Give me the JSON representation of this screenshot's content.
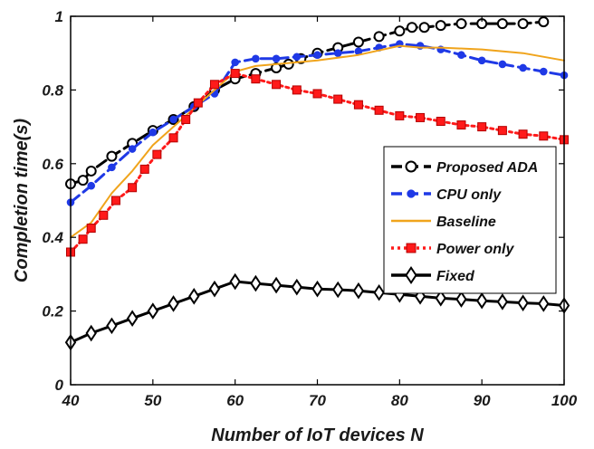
{
  "chart_data": {
    "type": "line",
    "xlabel": "Number of IoT devices N",
    "ylabel": "Completion time(s)",
    "xlim": [
      40,
      100
    ],
    "ylim": [
      0,
      1
    ],
    "xticks": [
      "40",
      "50",
      "60",
      "70",
      "80",
      "90",
      "100"
    ],
    "yticks": [
      "0",
      "0.2",
      "0.4",
      "0.6",
      "0.8",
      "1"
    ],
    "grid": false,
    "legend_position": "right",
    "series": [
      {
        "name": "Proposed ADA",
        "color": "#000000",
        "line_style": "dashed",
        "marker": "circle-open",
        "x": [
          40,
          41.5,
          42.5,
          45,
          47.5,
          50,
          52.5,
          55,
          57.5,
          60,
          62.5,
          65,
          66.5,
          68,
          70,
          72.5,
          75,
          77.5,
          80,
          81.5,
          83,
          85,
          87.5,
          90,
          92.5,
          95,
          97.5
        ],
        "y": [
          0.545,
          0.555,
          0.58,
          0.62,
          0.655,
          0.69,
          0.72,
          0.755,
          0.8,
          0.83,
          0.845,
          0.86,
          0.87,
          0.885,
          0.9,
          0.915,
          0.93,
          0.945,
          0.96,
          0.97,
          0.97,
          0.975,
          0.98,
          0.98,
          0.98,
          0.98,
          0.985
        ]
      },
      {
        "name": "CPU only",
        "color": "#1f39e6",
        "line_style": "dashed",
        "marker": "dot",
        "x": [
          40,
          42.5,
          45,
          47.5,
          50,
          52.5,
          55,
          57.5,
          60,
          62.5,
          65,
          67.5,
          70,
          72.5,
          75,
          77.5,
          80,
          82.5,
          85,
          87.5,
          90,
          92.5,
          95,
          97.5,
          100
        ],
        "y": [
          0.495,
          0.54,
          0.59,
          0.64,
          0.685,
          0.72,
          0.755,
          0.79,
          0.875,
          0.885,
          0.885,
          0.89,
          0.895,
          0.9,
          0.905,
          0.915,
          0.925,
          0.92,
          0.91,
          0.895,
          0.88,
          0.87,
          0.86,
          0.85,
          0.84
        ]
      },
      {
        "name": "Baseline",
        "color": "#f0a41c",
        "line_style": "solid",
        "marker": "none",
        "x": [
          40,
          42.5,
          45,
          47.5,
          50,
          52.5,
          55,
          57.5,
          60,
          62.5,
          65,
          70,
          75,
          80,
          82.5,
          85,
          90,
          95,
          100
        ],
        "y": [
          0.4,
          0.44,
          0.52,
          0.58,
          0.65,
          0.7,
          0.75,
          0.8,
          0.85,
          0.865,
          0.87,
          0.88,
          0.895,
          0.92,
          0.915,
          0.915,
          0.91,
          0.9,
          0.88
        ]
      },
      {
        "name": "Power only",
        "color": "#ff1a1a",
        "line_style": "dotted",
        "marker": "square",
        "x": [
          40,
          41.5,
          42.5,
          44,
          45.5,
          47.5,
          49,
          50.5,
          52.5,
          54,
          55.5,
          57.5,
          60,
          62.5,
          65,
          67.5,
          70,
          72.5,
          75,
          77.5,
          80,
          82.5,
          85,
          87.5,
          90,
          92.5,
          95,
          97.5,
          100
        ],
        "y": [
          0.36,
          0.395,
          0.425,
          0.46,
          0.5,
          0.535,
          0.585,
          0.625,
          0.67,
          0.72,
          0.765,
          0.815,
          0.845,
          0.83,
          0.815,
          0.8,
          0.79,
          0.775,
          0.76,
          0.745,
          0.73,
          0.725,
          0.715,
          0.705,
          0.7,
          0.69,
          0.68,
          0.675,
          0.665
        ]
      },
      {
        "name": "Fixed",
        "color": "#000000",
        "line_style": "solid",
        "marker": "diamond",
        "x": [
          40,
          42.5,
          45,
          47.5,
          50,
          52.5,
          55,
          57.5,
          60,
          62.5,
          65,
          67.5,
          70,
          72.5,
          75,
          77.5,
          80,
          82.5,
          85,
          87.5,
          90,
          92.5,
          95,
          97.5,
          100
        ],
        "y": [
          0.115,
          0.14,
          0.16,
          0.18,
          0.2,
          0.22,
          0.24,
          0.26,
          0.28,
          0.275,
          0.27,
          0.265,
          0.26,
          0.258,
          0.255,
          0.25,
          0.245,
          0.24,
          0.235,
          0.232,
          0.228,
          0.225,
          0.222,
          0.22,
          0.215
        ]
      }
    ]
  }
}
